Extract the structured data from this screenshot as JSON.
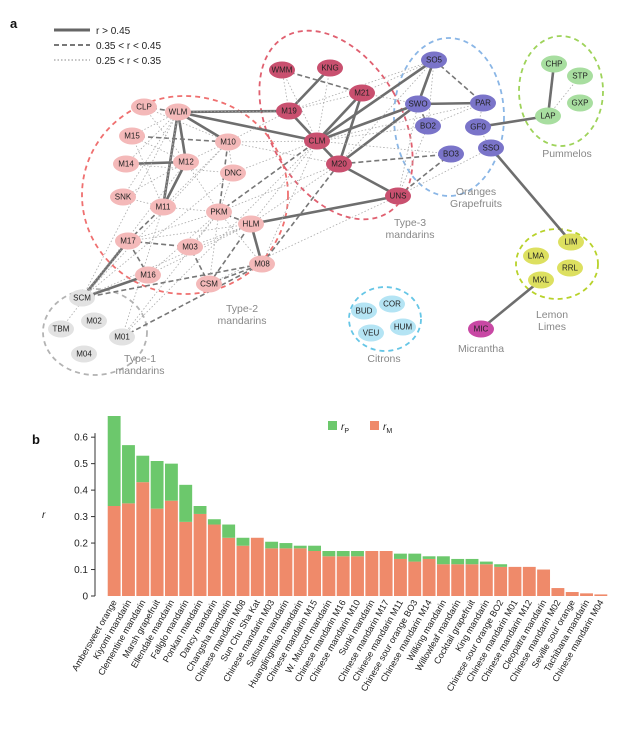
{
  "panel_a": {
    "letter": "a",
    "legend": [
      {
        "label": "r > 0.45",
        "style": "solid"
      },
      {
        "label": "0.35 < r < 0.45",
        "style": "dashed"
      },
      {
        "label": "0.25 < r < 0.35",
        "style": "dotted"
      }
    ],
    "colors": {
      "type1": "#e2e2e2",
      "type2": "#f4b9b9",
      "type3": "#c9506f",
      "oranges": "#7a74c9",
      "pummelos": "#a8dea0",
      "lemons": "#dde060",
      "citrons": "#b4e4f4",
      "micrantha": "#c848a4"
    },
    "groups": [
      {
        "id": "type1",
        "label": [
          "Type-1",
          "mandarins"
        ],
        "color": "#b3b3b3"
      },
      {
        "id": "type2",
        "label": [
          "Type-2",
          "mandarins"
        ],
        "color": "#ef7070"
      },
      {
        "id": "type3",
        "label": [
          "Type-3",
          "mandarins"
        ],
        "color": "#e06070"
      },
      {
        "id": "oranges",
        "label": [
          "Oranges",
          "Grapefruits"
        ],
        "color": "#8ab6e6"
      },
      {
        "id": "pummelos",
        "label": [
          "Pummelos"
        ],
        "color": "#9ed35a"
      },
      {
        "id": "lemons",
        "label": [
          "Lemon",
          "Limes"
        ],
        "color": "#b8d22a"
      },
      {
        "id": "citrons",
        "label": [
          "Citrons"
        ],
        "color": "#66c6e6"
      },
      {
        "id": "micrantha",
        "label": [
          "Micrantha"
        ],
        "color": "#999999"
      }
    ],
    "nodes": [
      {
        "id": "SCM",
        "group": "type1"
      },
      {
        "id": "TBM",
        "group": "type1"
      },
      {
        "id": "M02",
        "group": "type1"
      },
      {
        "id": "M04",
        "group": "type1"
      },
      {
        "id": "M01",
        "group": "type1"
      },
      {
        "id": "CLP",
        "group": "type2"
      },
      {
        "id": "WLM",
        "group": "type2"
      },
      {
        "id": "M15",
        "group": "type2"
      },
      {
        "id": "M10",
        "group": "type2"
      },
      {
        "id": "M14",
        "group": "type2"
      },
      {
        "id": "M12",
        "group": "type2"
      },
      {
        "id": "DNC",
        "group": "type2"
      },
      {
        "id": "SNK",
        "group": "type2"
      },
      {
        "id": "M11",
        "group": "type2"
      },
      {
        "id": "PKM",
        "group": "type2"
      },
      {
        "id": "HLM",
        "group": "type2"
      },
      {
        "id": "M17",
        "group": "type2"
      },
      {
        "id": "M03",
        "group": "type2"
      },
      {
        "id": "M08",
        "group": "type2"
      },
      {
        "id": "M16",
        "group": "type2"
      },
      {
        "id": "CSM",
        "group": "type2"
      },
      {
        "id": "WMM",
        "group": "type3"
      },
      {
        "id": "KNG",
        "group": "type3"
      },
      {
        "id": "M19",
        "group": "type3"
      },
      {
        "id": "M21",
        "group": "type3"
      },
      {
        "id": "CLM",
        "group": "type3"
      },
      {
        "id": "M20",
        "group": "type3"
      },
      {
        "id": "UNS",
        "group": "type3"
      },
      {
        "id": "SO5",
        "group": "oranges"
      },
      {
        "id": "SWO",
        "group": "oranges"
      },
      {
        "id": "PAR",
        "group": "oranges"
      },
      {
        "id": "BO2",
        "group": "oranges"
      },
      {
        "id": "GF0",
        "group": "oranges"
      },
      {
        "id": "BO3",
        "group": "oranges"
      },
      {
        "id": "SSO",
        "group": "oranges"
      },
      {
        "id": "CHP",
        "group": "pummelos"
      },
      {
        "id": "STP",
        "group": "pummelos"
      },
      {
        "id": "GXP",
        "group": "pummelos"
      },
      {
        "id": "LAP",
        "group": "pummelos"
      },
      {
        "id": "LIM",
        "group": "lemons"
      },
      {
        "id": "LMA",
        "group": "lemons"
      },
      {
        "id": "RRL",
        "group": "lemons"
      },
      {
        "id": "MXL",
        "group": "lemons"
      },
      {
        "id": "BUD",
        "group": "citrons"
      },
      {
        "id": "COR",
        "group": "citrons"
      },
      {
        "id": "VEU",
        "group": "citrons"
      },
      {
        "id": "HUM",
        "group": "citrons"
      },
      {
        "id": "MIC",
        "group": "micrantha"
      }
    ],
    "edges": [
      [
        "WLM",
        "M11",
        "solid"
      ],
      [
        "WLM",
        "M12",
        "solid"
      ],
      [
        "WLM",
        "M10",
        "solid"
      ],
      [
        "WLM",
        "CLM",
        "solid"
      ],
      [
        "WLM",
        "M19",
        "solid"
      ],
      [
        "M14",
        "M12",
        "solid"
      ],
      [
        "M12",
        "M11",
        "solid"
      ],
      [
        "M17",
        "SCM",
        "solid"
      ],
      [
        "M16",
        "SCM",
        "solid"
      ],
      [
        "HLM",
        "M08",
        "solid"
      ],
      [
        "HLM",
        "UNS",
        "solid"
      ],
      [
        "CLM",
        "SWO",
        "solid"
      ],
      [
        "CLM",
        "SO5",
        "solid"
      ],
      [
        "CLM",
        "M21",
        "solid"
      ],
      [
        "CLM",
        "M19",
        "solid"
      ],
      [
        "CLM",
        "M20",
        "solid"
      ],
      [
        "M20",
        "UNS",
        "solid"
      ],
      [
        "KNG",
        "M19",
        "solid"
      ],
      [
        "SWO",
        "PAR",
        "solid"
      ],
      [
        "SWO",
        "SO5",
        "solid"
      ],
      [
        "SWO",
        "M20",
        "solid"
      ],
      [
        "GF0",
        "LAP",
        "solid"
      ],
      [
        "LAP",
        "CHP",
        "solid"
      ],
      [
        "SSO",
        "LIM",
        "solid"
      ],
      [
        "MIC",
        "MXL",
        "solid"
      ],
      [
        "M21",
        "M20",
        "solid"
      ],
      [
        "CSM",
        "M08",
        "dashed"
      ],
      [
        "CSM",
        "M03",
        "dashed"
      ],
      [
        "CSM",
        "HLM",
        "dashed"
      ],
      [
        "M08",
        "M20",
        "dashed"
      ],
      [
        "PKM",
        "CLM",
        "dashed"
      ],
      [
        "PKM",
        "M10",
        "dashed"
      ],
      [
        "PKM",
        "HLM",
        "dashed"
      ],
      [
        "M16",
        "M17",
        "dashed"
      ],
      [
        "M17",
        "M11",
        "dashed"
      ],
      [
        "WMM",
        "M21",
        "dashed"
      ],
      [
        "SO5",
        "PAR",
        "dashed"
      ],
      [
        "BO2",
        "SWO",
        "dashed"
      ],
      [
        "BO3",
        "M20",
        "dashed"
      ],
      [
        "UNS",
        "BO3",
        "dashed"
      ],
      [
        "M15",
        "M10",
        "dashed"
      ],
      [
        "M01",
        "M08",
        "dashed"
      ],
      [
        "SCM",
        "M08",
        "dashed"
      ],
      [
        "M03",
        "M17",
        "dashed"
      ],
      [
        "CLP",
        "WLM",
        "dashed"
      ],
      [
        "SCM",
        "WLM",
        "dotted"
      ],
      [
        "SCM",
        "M12",
        "dotted"
      ],
      [
        "SCM",
        "M10",
        "dotted"
      ],
      [
        "SCM",
        "HLM",
        "dotted"
      ],
      [
        "SCM",
        "DNC",
        "dotted"
      ],
      [
        "M01",
        "PKM",
        "dotted"
      ],
      [
        "M01",
        "M11",
        "dotted"
      ],
      [
        "M01",
        "CLM",
        "dotted"
      ],
      [
        "TBM",
        "M17",
        "dotted"
      ],
      [
        "M15",
        "M11",
        "dotted"
      ],
      [
        "M14",
        "WLM",
        "dotted"
      ],
      [
        "M14",
        "DNC",
        "dotted"
      ],
      [
        "SNK",
        "WLM",
        "dotted"
      ],
      [
        "SNK",
        "M12",
        "dotted"
      ],
      [
        "SNK",
        "M11",
        "dotted"
      ],
      [
        "M15",
        "WLM",
        "dotted"
      ],
      [
        "M15",
        "M12",
        "dotted"
      ],
      [
        "CLP",
        "M10",
        "dotted"
      ],
      [
        "CLP",
        "M12",
        "dotted"
      ],
      [
        "M11",
        "M10",
        "dotted"
      ],
      [
        "DNC",
        "PKM",
        "dotted"
      ],
      [
        "DNC",
        "M10",
        "dotted"
      ],
      [
        "M10",
        "M12",
        "dotted"
      ],
      [
        "M10",
        "CLM",
        "dotted"
      ],
      [
        "M10",
        "M19",
        "dotted"
      ],
      [
        "M10",
        "M20",
        "dotted"
      ],
      [
        "DNC",
        "CLM",
        "dotted"
      ],
      [
        "PKM",
        "M12",
        "dotted"
      ],
      [
        "PKM",
        "M11",
        "dotted"
      ],
      [
        "PKM",
        "M20",
        "dotted"
      ],
      [
        "M17",
        "PKM",
        "dotted"
      ],
      [
        "M17",
        "HLM",
        "dotted"
      ],
      [
        "M16",
        "HLM",
        "dotted"
      ],
      [
        "M16",
        "PKM",
        "dotted"
      ],
      [
        "M03",
        "HLM",
        "dotted"
      ],
      [
        "M03",
        "PKM",
        "dotted"
      ],
      [
        "M08",
        "PKM",
        "dotted"
      ],
      [
        "M08",
        "CLM",
        "dotted"
      ],
      [
        "CSM",
        "PKM",
        "dotted"
      ],
      [
        "CSM",
        "UNS",
        "dotted"
      ],
      [
        "HLM",
        "CLM",
        "dotted"
      ],
      [
        "HLM",
        "M20",
        "dotted"
      ],
      [
        "M19",
        "M21",
        "dotted"
      ],
      [
        "M19",
        "WMM",
        "dotted"
      ],
      [
        "M19",
        "SO5",
        "dotted"
      ],
      [
        "WMM",
        "CLM",
        "dotted"
      ],
      [
        "KNG",
        "CLM",
        "dotted"
      ],
      [
        "M21",
        "SWO",
        "dotted"
      ],
      [
        "M21",
        "SO5",
        "dotted"
      ],
      [
        "CLM",
        "BO2",
        "dotted"
      ],
      [
        "CLM",
        "PAR",
        "dotted"
      ],
      [
        "CLM",
        "BO3",
        "dotted"
      ],
      [
        "M20",
        "SO5",
        "dotted"
      ],
      [
        "UNS",
        "SWO",
        "dotted"
      ],
      [
        "UNS",
        "BO2",
        "dotted"
      ],
      [
        "UNS",
        "SSO",
        "dotted"
      ],
      [
        "BO2",
        "PAR",
        "dotted"
      ],
      [
        "SO5",
        "BO2",
        "dotted"
      ],
      [
        "GF0",
        "PAR",
        "dotted"
      ],
      [
        "GF0",
        "SSO",
        "dotted"
      ],
      [
        "LAP",
        "STP",
        "dotted"
      ],
      [
        "M11",
        "WLM",
        "dotted"
      ],
      [
        "M19",
        "WLM",
        "dotted"
      ]
    ]
  },
  "chart_data": {
    "type": "bar",
    "panel_letter": "b",
    "ylabel": "r",
    "ylim": [
      0,
      0.68
    ],
    "yticks": [
      "0",
      "0.1",
      "0.2",
      "0.3",
      "0.4",
      "0.5",
      "0.6"
    ],
    "legend": [
      {
        "name": "r",
        "sub": "P",
        "color": "#6cc86c"
      },
      {
        "name": "r",
        "sub": "M",
        "color": "#ef8a6a"
      }
    ],
    "categories": [
      "Ambersweet orange",
      "Kiyomi mandarin",
      "Clementine mandarin",
      "Marsh grapefruit",
      "Ellendale mandarin",
      "Fallglo mandarin",
      "Ponkan mandarin",
      "Dancy mandarin",
      "Changsha mandarin",
      "Chinese mandarin M08",
      "Sun Chu Sha Kat",
      "Chinese mandarin M03",
      "Satsuma mandarin",
      "Huanglingmiao mandarin",
      "Chinese mandarin M15",
      "W. Murcott mandarin",
      "Chinese mandarin M16",
      "Chinese mandarin M10",
      "Sunki mandarin",
      "Chinese mandarin M17",
      "Chinese mandarin M11",
      "Chinese sour orange BO3",
      "Chinese mandarin M14",
      "Wilking mandarin",
      "Willowleaf mandarin",
      "Cocktail grapefruit",
      "King mandarin",
      "Chinese sour orange BO2",
      "Chinese mandarin M01",
      "Chinese mandarin M12",
      "Cleopatra mandarin",
      "Chinese mandarin M02",
      "Seville sour orange",
      "Tachibana mandarin",
      "Chinese mandarin M04"
    ],
    "series": [
      {
        "name": "M",
        "values": [
          0.34,
          0.35,
          0.43,
          0.33,
          0.36,
          0.28,
          0.31,
          0.27,
          0.22,
          0.19,
          0.22,
          0.18,
          0.18,
          0.18,
          0.17,
          0.15,
          0.15,
          0.15,
          0.17,
          0.17,
          0.14,
          0.13,
          0.14,
          0.12,
          0.12,
          0.12,
          0.12,
          0.11,
          0.11,
          0.11,
          0.1,
          0.03,
          0.015,
          0.01,
          0.006
        ]
      },
      {
        "name": "P",
        "values": [
          0.34,
          0.22,
          0.1,
          0.18,
          0.14,
          0.14,
          0.03,
          0.02,
          0.05,
          0.03,
          0.0,
          0.025,
          0.02,
          0.01,
          0.02,
          0.02,
          0.02,
          0.02,
          0.0,
          0.0,
          0.02,
          0.03,
          0.01,
          0.03,
          0.02,
          0.02,
          0.01,
          0.01,
          0.0,
          0.0,
          0.0,
          0.0,
          0.0,
          0.0,
          0.0
        ]
      }
    ]
  }
}
